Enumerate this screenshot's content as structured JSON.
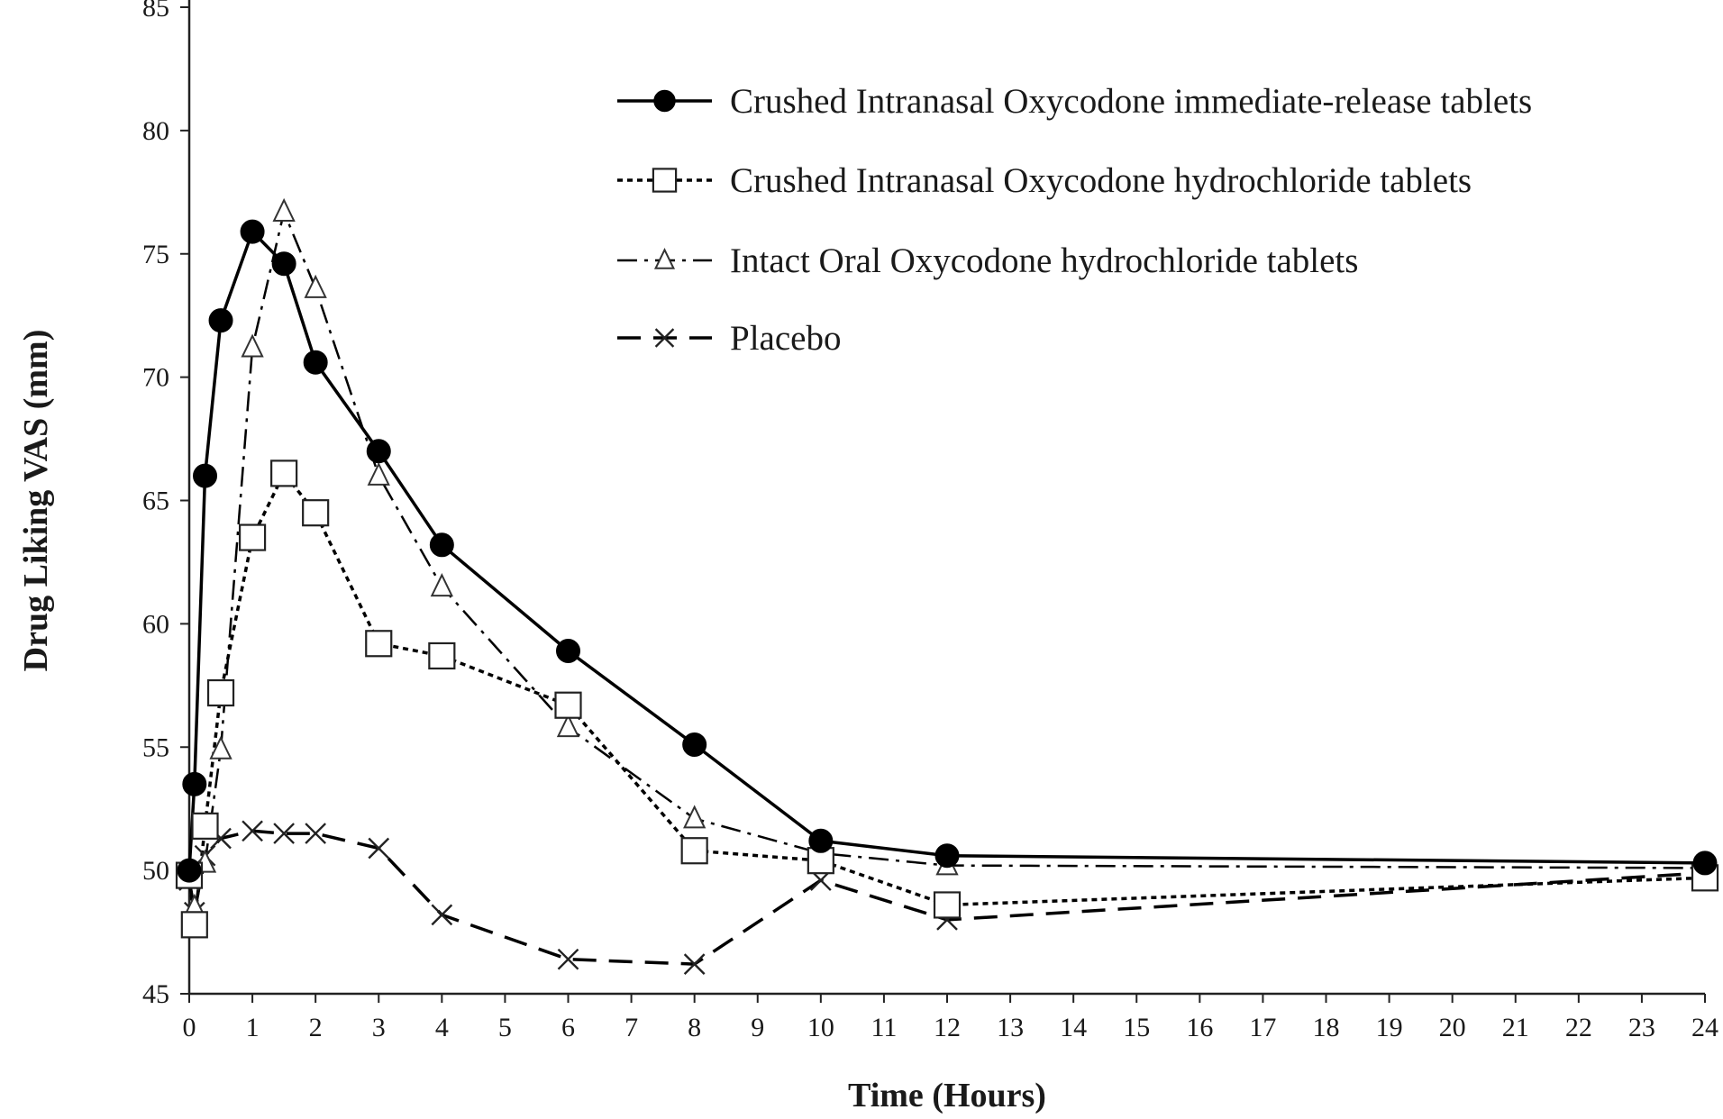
{
  "chart_data": {
    "type": "line",
    "title": "",
    "xlabel": "Time (Hours)",
    "ylabel": "Drug Liking VAS (mm)",
    "xlim": [
      0,
      24
    ],
    "ylim": [
      45,
      85
    ],
    "xticks": [
      0,
      1,
      2,
      3,
      4,
      5,
      6,
      7,
      8,
      9,
      10,
      11,
      12,
      13,
      14,
      15,
      16,
      17,
      18,
      19,
      20,
      21,
      22,
      23,
      24
    ],
    "yticks": [
      45,
      50,
      55,
      60,
      65,
      70,
      75,
      80,
      85
    ],
    "grid": false,
    "legend_position": "top-right",
    "series": [
      {
        "name": "Crushed Intranasal Oxycodone immediate-release tablets",
        "marker": "filled-circle",
        "line_style": "solid",
        "color": "#000000",
        "x": [
          0,
          0.083,
          0.25,
          0.5,
          1,
          1.5,
          2,
          3,
          4,
          6,
          8,
          10,
          12,
          24
        ],
        "y": [
          50.0,
          53.5,
          66.0,
          72.3,
          75.9,
          74.6,
          70.6,
          67.0,
          63.2,
          58.9,
          55.1,
          51.2,
          50.6,
          50.3
        ]
      },
      {
        "name": "Crushed Intranasal Oxycodone hydrochloride tablets",
        "marker": "open-square",
        "line_style": "dotted",
        "color": "#000000",
        "x": [
          0,
          0.083,
          0.25,
          0.5,
          1,
          1.5,
          2,
          3,
          4,
          6,
          8,
          10,
          12,
          24
        ],
        "y": [
          49.8,
          47.8,
          51.8,
          57.2,
          63.5,
          66.1,
          64.5,
          59.2,
          58.7,
          56.7,
          50.8,
          50.4,
          48.6,
          49.7
        ]
      },
      {
        "name": "Intact Oral Oxycodone hydrochloride tablets",
        "marker": "open-triangle",
        "line_style": "dash-dot",
        "color": "#000000",
        "x": [
          0,
          0.083,
          0.25,
          0.5,
          1,
          1.5,
          2,
          3,
          4,
          6,
          8,
          10,
          12,
          24
        ],
        "y": [
          49.7,
          48.5,
          50.3,
          54.9,
          71.2,
          76.7,
          73.6,
          66.0,
          61.5,
          55.8,
          52.1,
          50.7,
          50.2,
          50.1
        ]
      },
      {
        "name": "Placebo",
        "marker": "x",
        "line_style": "dashed",
        "color": "#000000",
        "x": [
          0,
          0.083,
          0.25,
          0.5,
          1,
          1.5,
          2,
          3,
          4,
          6,
          8,
          10,
          12,
          24
        ],
        "y": [
          49.6,
          48.3,
          50.6,
          51.3,
          51.6,
          51.5,
          51.5,
          50.9,
          48.2,
          46.4,
          46.2,
          49.6,
          48.0,
          49.9
        ]
      }
    ]
  }
}
